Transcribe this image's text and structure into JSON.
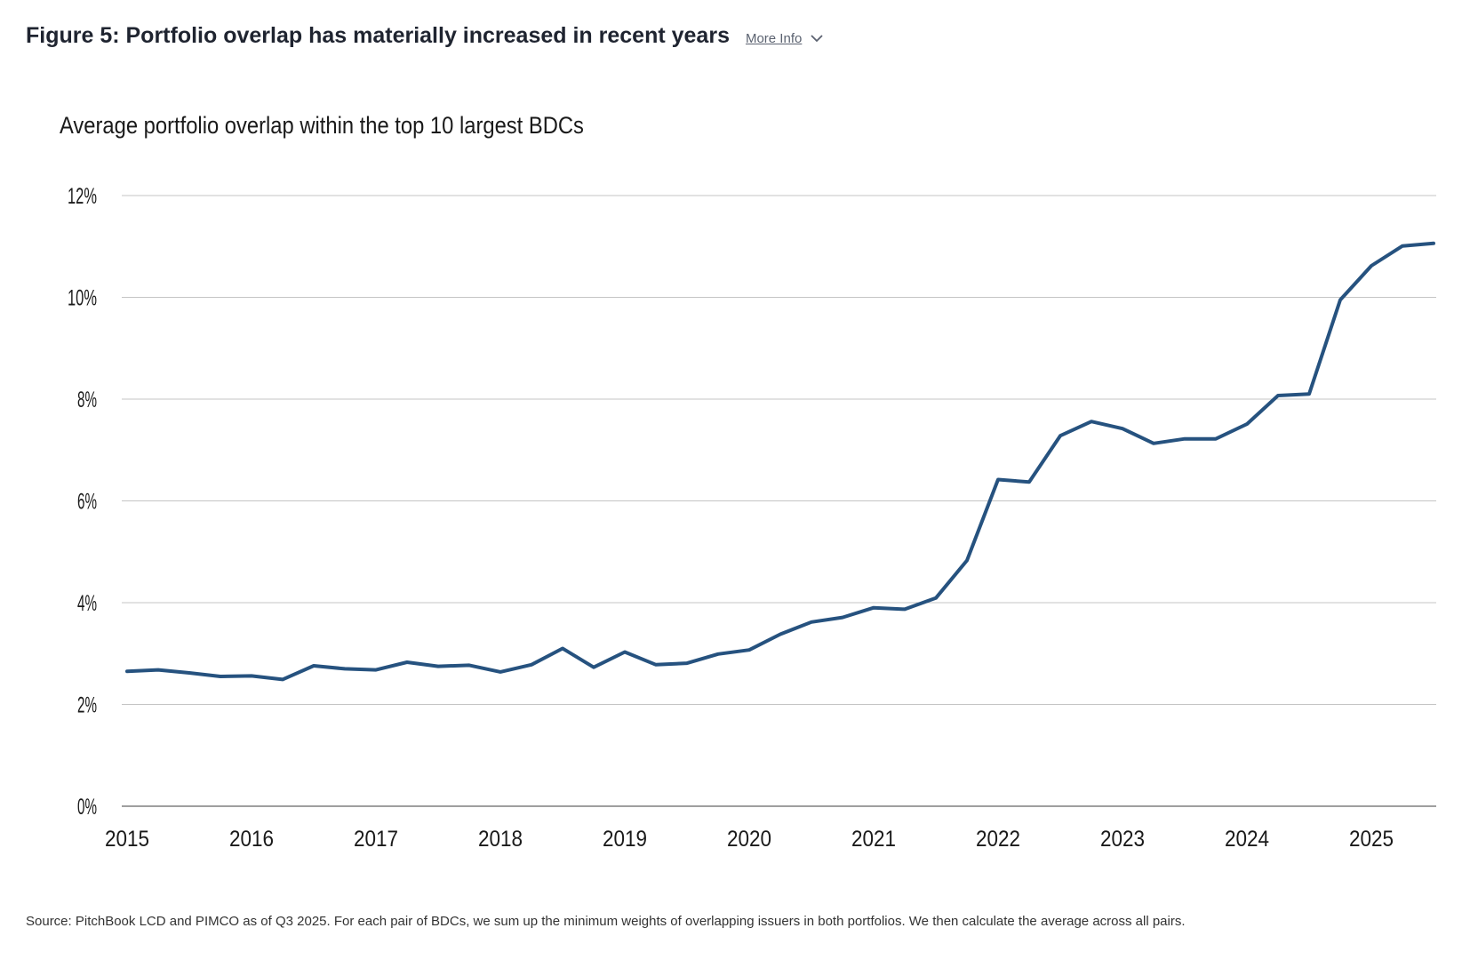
{
  "header": {
    "figure_title": "Figure 5: Portfolio overlap has materially increased in recent years",
    "more_info_label": "More Info"
  },
  "icons": {
    "more_info": "chevron-down-icon"
  },
  "colors": {
    "line": "#26527f",
    "grid": "#c4c4c4",
    "axis": "#666666"
  },
  "source_note": "Source: PitchBook LCD and PIMCO as of Q3 2025. For each pair of BDCs, we sum up the minimum weights of overlapping issuers in both portfolios. We then calculate the average across all pairs.",
  "chart_data": {
    "type": "line",
    "title": "Average portfolio overlap within the top 10 largest BDCs",
    "xlabel": "",
    "ylabel": "",
    "xlim": [
      2015,
      2025.5
    ],
    "ylim": [
      0,
      12
    ],
    "grid": true,
    "y_ticks": [
      0,
      2,
      4,
      6,
      8,
      10,
      12
    ],
    "y_tick_labels": [
      "0%",
      "2%",
      "4%",
      "6%",
      "8%",
      "10%",
      "12%"
    ],
    "x_ticks": [
      2015,
      2016,
      2017,
      2018,
      2019,
      2020,
      2021,
      2022,
      2023,
      2024,
      2025
    ],
    "x_tick_labels": [
      "2015",
      "2016",
      "2017",
      "2018",
      "2019",
      "2020",
      "2021",
      "2022",
      "2023",
      "2024",
      "2025"
    ],
    "series": [
      {
        "x": [
          2015.0,
          2015.25,
          2015.5,
          2015.75,
          2016.0,
          2016.25,
          2016.5,
          2016.75,
          2017.0,
          2017.25,
          2017.5,
          2017.75,
          2018.0,
          2018.25,
          2018.5,
          2018.75,
          2019.0,
          2019.25,
          2019.5,
          2019.75,
          2020.0,
          2020.25,
          2020.5,
          2020.75,
          2021.0,
          2021.25,
          2021.5,
          2021.75,
          2022.0,
          2022.25,
          2022.5,
          2022.75,
          2023.0,
          2023.25,
          2023.5,
          2023.75,
          2024.0,
          2024.25,
          2024.5,
          2024.75,
          2025.0,
          2025.25,
          2025.5
        ],
        "values": [
          2.65,
          2.68,
          2.62,
          2.55,
          2.56,
          2.49,
          2.76,
          2.7,
          2.68,
          2.83,
          2.75,
          2.77,
          2.64,
          2.78,
          3.1,
          2.73,
          3.03,
          2.78,
          2.81,
          2.99,
          3.07,
          3.38,
          3.62,
          3.71,
          3.9,
          3.87,
          4.09,
          4.83,
          6.42,
          6.37,
          7.28,
          7.56,
          7.42,
          7.13,
          7.22,
          7.22,
          7.51,
          8.07,
          8.1,
          9.95,
          10.62,
          11.01,
          11.06
        ]
      }
    ]
  }
}
